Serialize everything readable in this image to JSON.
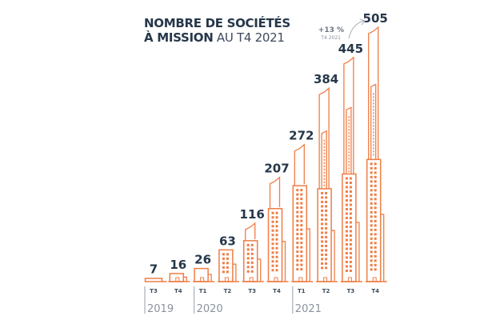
{
  "colors": {
    "building": "#ef7d45",
    "text_dark": "#26374a",
    "text_grey": "#8a929c",
    "divider": "#a8afb7"
  },
  "title": {
    "bold_line1": "NOMBRE DE SOCIÉTÉS",
    "bold_line2": "À MISSION",
    "light_line2": " AU T4 2021"
  },
  "annotation": {
    "growth": "+13 %",
    "period": "T4 2021"
  },
  "chart_data": {
    "type": "bar",
    "title": "NOMBRE DE SOCIÉTÉS À MISSION AU T4 2021",
    "xlabel": "",
    "ylabel": "",
    "categories": [
      "T3 2019",
      "T4 2019",
      "T1 2020",
      "T2 2020",
      "T3 2020",
      "T4 2020",
      "T1 2021",
      "T2 2021",
      "T3 2021",
      "T4 2021"
    ],
    "quarters": [
      "T3",
      "T4",
      "T1",
      "T2",
      "T3",
      "T4",
      "T1",
      "T2",
      "T3",
      "T4"
    ],
    "years": [
      {
        "label": "2019",
        "start_index": 0
      },
      {
        "label": "2020",
        "start_index": 2
      },
      {
        "label": "2021",
        "start_index": 6
      }
    ],
    "values": [
      7,
      16,
      26,
      63,
      116,
      207,
      272,
      384,
      445,
      505
    ],
    "ylim": [
      0,
      505
    ],
    "grid": false,
    "annotations": [
      {
        "target": "T4 2021",
        "text": "+13 %",
        "subtext": "T4 2021"
      }
    ]
  }
}
